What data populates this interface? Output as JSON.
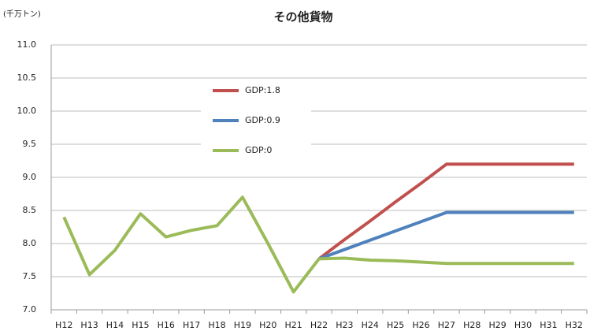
{
  "chart_data": {
    "type": "line",
    "title": "その他貨物",
    "y_axis_label": "(千万トン)",
    "categories": [
      "H12",
      "H13",
      "H14",
      "H15",
      "H16",
      "H17",
      "H18",
      "H19",
      "H20",
      "H21",
      "H22",
      "H23",
      "H24",
      "H25",
      "H26",
      "H27",
      "H28",
      "H29",
      "H30",
      "H31",
      "H32"
    ],
    "series": [
      {
        "name": "GDP:1.8",
        "color": "#c0504d",
        "values": [
          null,
          null,
          null,
          null,
          null,
          null,
          null,
          null,
          null,
          null,
          7.77,
          8.06,
          8.34,
          8.63,
          8.91,
          9.2,
          9.2,
          9.2,
          9.2,
          9.2,
          9.2
        ]
      },
      {
        "name": "GDP:0.9",
        "color": "#4f81bd",
        "values": [
          null,
          null,
          null,
          null,
          null,
          null,
          null,
          null,
          null,
          null,
          7.77,
          7.91,
          8.05,
          8.19,
          8.33,
          8.47,
          8.47,
          8.47,
          8.47,
          8.47,
          8.47
        ]
      },
      {
        "name": "GDP:0",
        "color": "#9bbb59",
        "values": [
          8.4,
          7.53,
          7.9,
          8.45,
          8.1,
          8.2,
          8.27,
          8.7,
          8.0,
          7.27,
          7.77,
          7.78,
          7.75,
          7.74,
          7.72,
          7.7,
          7.7,
          7.7,
          7.7,
          7.7,
          7.7
        ]
      }
    ],
    "ylim": [
      7,
      11
    ],
    "yticks": [
      {
        "value": 7,
        "label": "7.0"
      },
      7.5,
      {
        "value": 8,
        "label": "8.0"
      },
      8.5,
      {
        "value": 9,
        "label": "9.0"
      },
      9.5,
      {
        "value": 10,
        "label": "10.0"
      },
      10.5,
      {
        "value": 11,
        "label": "11.0"
      }
    ],
    "grid": true,
    "legend": "upper left"
  }
}
